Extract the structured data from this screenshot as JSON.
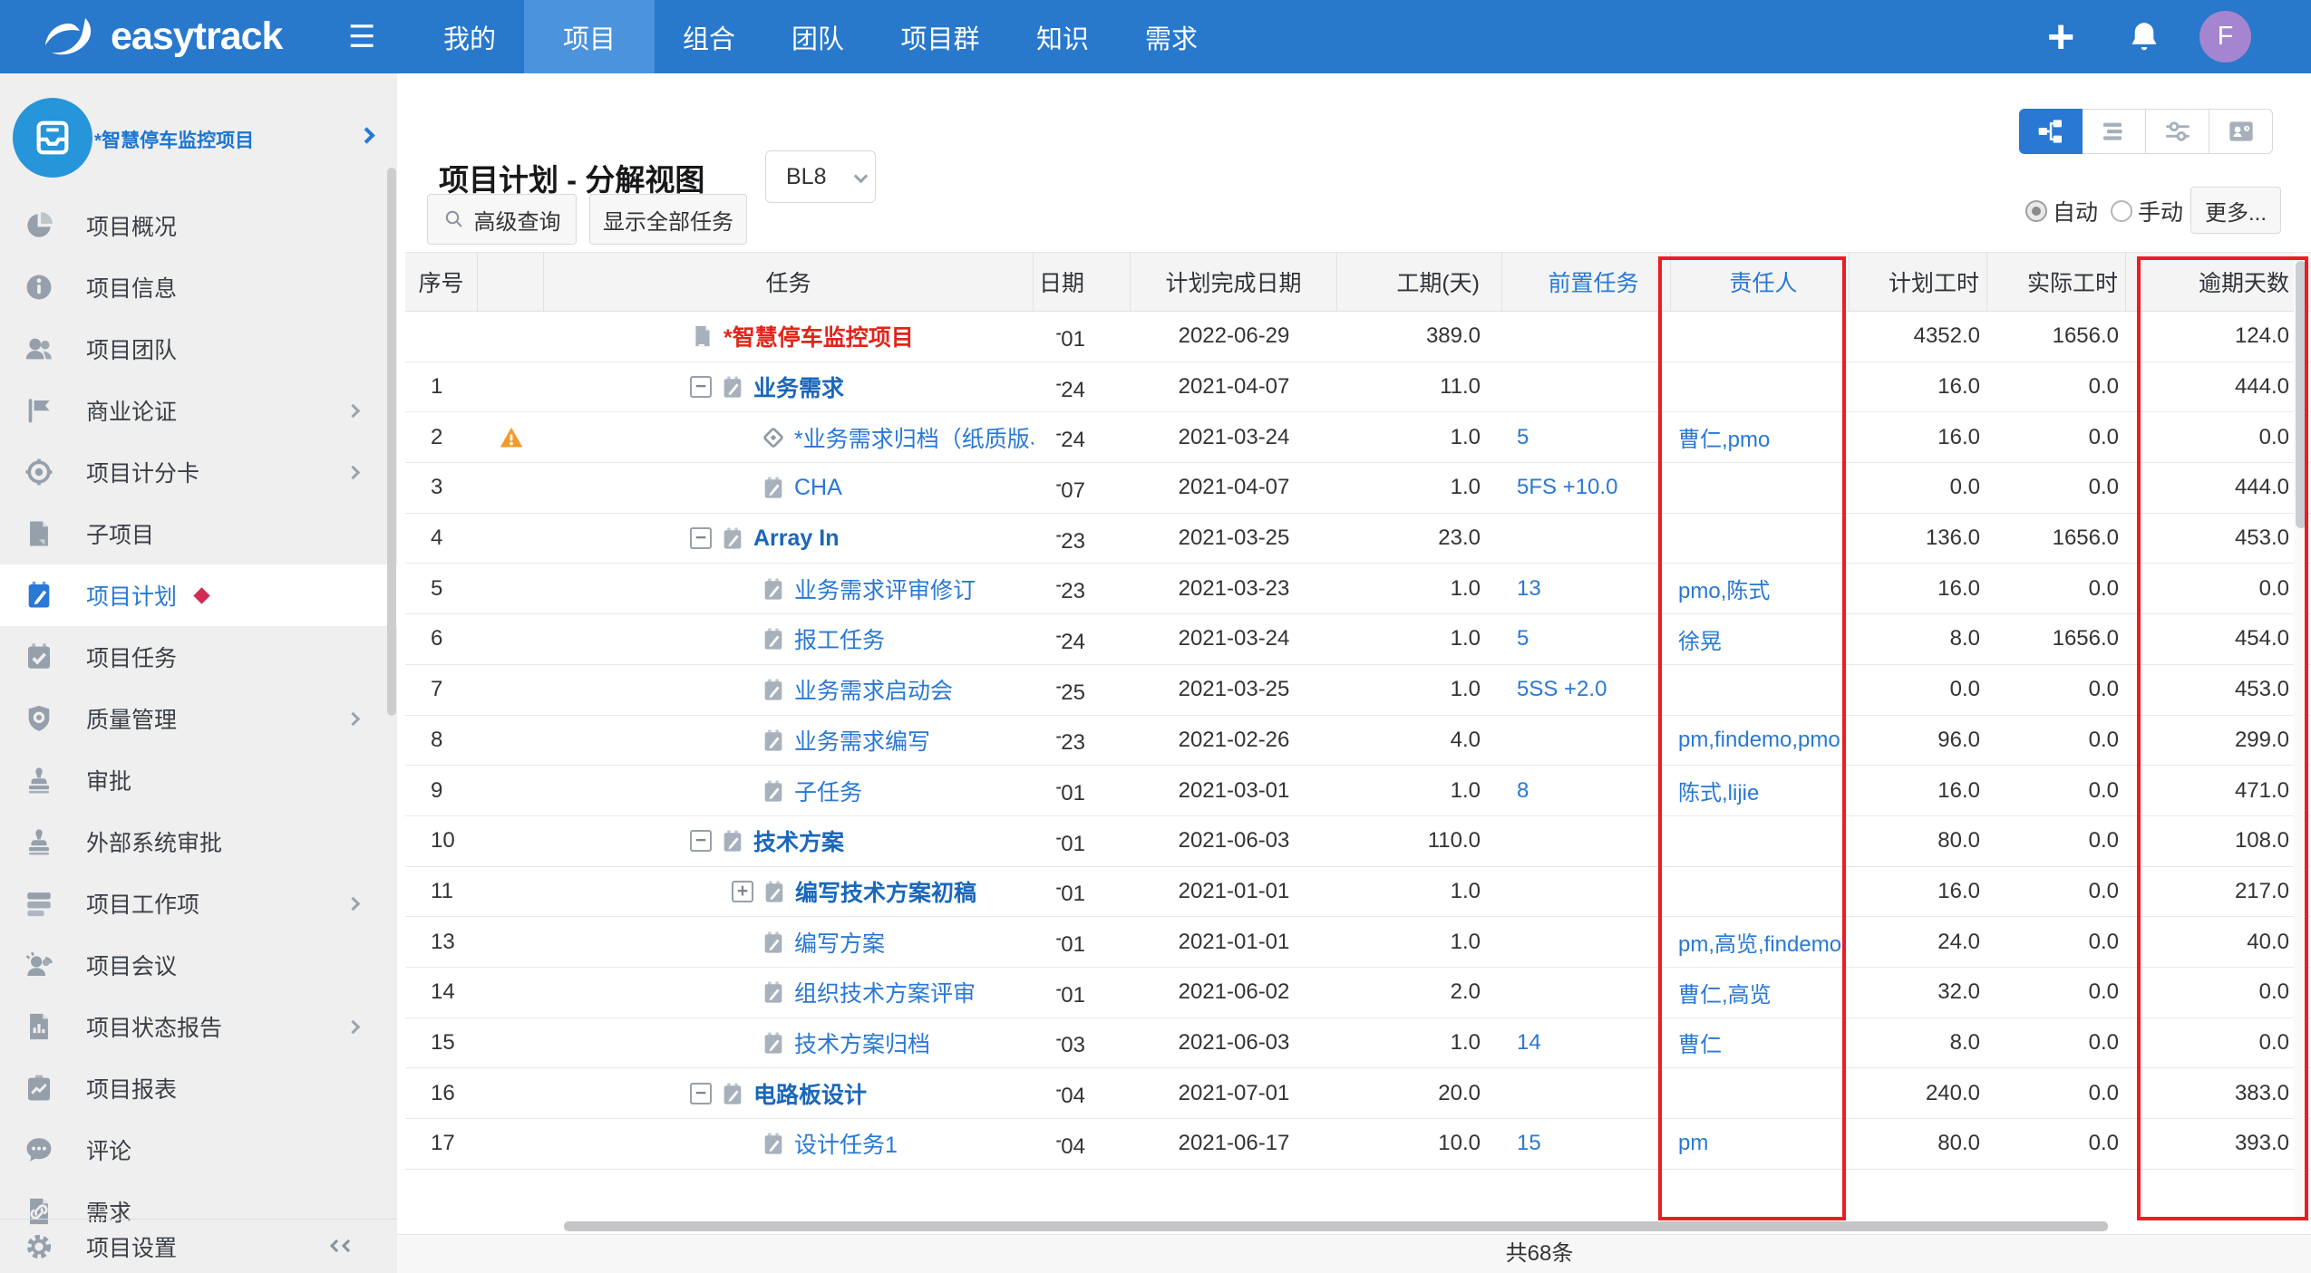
{
  "nav": {
    "logo": "easytrack",
    "items": [
      {
        "label": "我的",
        "active": false
      },
      {
        "label": "项目",
        "active": true
      },
      {
        "label": "组合",
        "active": false
      },
      {
        "label": "团队",
        "active": false
      },
      {
        "label": "项目群",
        "active": false
      },
      {
        "label": "知识",
        "active": false
      },
      {
        "label": "需求",
        "active": false
      }
    ],
    "plus": "+",
    "avatar": "F"
  },
  "sidebar": {
    "project_name": "*智慧停车监控项目",
    "items": [
      {
        "icon": "pie-icon",
        "label": "项目概况",
        "chevron": false,
        "selected": false
      },
      {
        "icon": "info-icon",
        "label": "项目信息",
        "chevron": false,
        "selected": false
      },
      {
        "icon": "team-icon",
        "label": "项目团队",
        "chevron": false,
        "selected": false
      },
      {
        "icon": "flag-icon",
        "label": "商业论证",
        "chevron": true,
        "selected": false
      },
      {
        "icon": "target-icon",
        "label": "项目计分卡",
        "chevron": true,
        "selected": false
      },
      {
        "icon": "subproject-icon",
        "label": "子项目",
        "chevron": false,
        "selected": false
      },
      {
        "icon": "plan-icon",
        "label": "项目计划",
        "chevron": false,
        "selected": true,
        "badge": true
      },
      {
        "icon": "task-icon",
        "label": "项目任务",
        "chevron": false,
        "selected": false
      },
      {
        "icon": "shield-icon",
        "label": "质量管理",
        "chevron": true,
        "selected": false
      },
      {
        "icon": "stamp-icon",
        "label": "审批",
        "chevron": false,
        "selected": false
      },
      {
        "icon": "stamp-icon",
        "label": "外部系统审批",
        "chevron": false,
        "selected": false
      },
      {
        "icon": "workitems-icon",
        "label": "项目工作项",
        "chevron": true,
        "selected": false
      },
      {
        "icon": "meeting-icon",
        "label": "项目会议",
        "chevron": false,
        "selected": false
      },
      {
        "icon": "status-report-icon",
        "label": "项目状态报告",
        "chevron": true,
        "selected": false
      },
      {
        "icon": "report-icon",
        "label": "项目报表",
        "chevron": false,
        "selected": false
      },
      {
        "icon": "comment-icon",
        "label": "评论",
        "chevron": false,
        "selected": false
      },
      {
        "icon": "requirement-icon",
        "label": "需求",
        "chevron": false,
        "selected": false
      }
    ],
    "footer": {
      "icon": "gear-icon",
      "label": "项目设置"
    }
  },
  "header": {
    "title": "项目计划 - 分解视图",
    "baseline": "BL8"
  },
  "toolbar": {
    "query_label": "高级查询",
    "show_all_label": "显示全部任务",
    "more_label": "更多...",
    "views": [
      "wbs-view-icon",
      "list-view-icon",
      "filter-view-icon",
      "card-view-icon"
    ],
    "active_view": 0,
    "radios": [
      {
        "label": "自动",
        "checked": true
      },
      {
        "label": "手动",
        "checked": false
      }
    ]
  },
  "table": {
    "headers": [
      "序号",
      "",
      "任务",
      "日期",
      "计划完成日期",
      "工期(天)",
      "前置任务",
      "责任人",
      "计划工时",
      "实际工时",
      "逾期天数"
    ],
    "rows": [
      {
        "seq": "",
        "warn": false,
        "level": 0,
        "exp": "",
        "icon": "project",
        "name": "*智慧停车监控项目",
        "style": "project",
        "start": "01",
        "finish": "2022-06-29",
        "dur": "389.0",
        "pred": "",
        "owner": "",
        "plan": "4352.0",
        "act": "1656.0",
        "over": "124.0"
      },
      {
        "seq": "1",
        "warn": false,
        "level": 1,
        "exp": "minus",
        "icon": "task",
        "name": "业务需求",
        "style": "parent",
        "start": "24",
        "finish": "2021-04-07",
        "dur": "11.0",
        "pred": "",
        "owner": "",
        "plan": "16.0",
        "act": "0.0",
        "over": "444.0"
      },
      {
        "seq": "2",
        "warn": true,
        "level": 2,
        "exp": "",
        "icon": "milestone",
        "name": "*业务需求归档（纸质版、电子版、评审会议",
        "style": "link",
        "start": "24",
        "finish": "2021-03-24",
        "dur": "1.0",
        "pred": "5",
        "owner": "曹仁,pmo",
        "plan": "16.0",
        "act": "0.0",
        "over": "0.0"
      },
      {
        "seq": "3",
        "warn": false,
        "level": 2,
        "exp": "",
        "icon": "task",
        "name": "CHA",
        "style": "link",
        "start": "07",
        "finish": "2021-04-07",
        "dur": "1.0",
        "pred": "5FS +10.0",
        "owner": "",
        "plan": "0.0",
        "act": "0.0",
        "over": "444.0"
      },
      {
        "seq": "4",
        "warn": false,
        "level": 1,
        "exp": "minus",
        "icon": "task",
        "name": "Array In",
        "style": "parent",
        "start": "23",
        "finish": "2021-03-25",
        "dur": "23.0",
        "pred": "",
        "owner": "",
        "plan": "136.0",
        "act": "1656.0",
        "over": "453.0"
      },
      {
        "seq": "5",
        "warn": false,
        "level": 2,
        "exp": "",
        "icon": "task",
        "name": "业务需求评审修订",
        "style": "link",
        "start": "23",
        "finish": "2021-03-23",
        "dur": "1.0",
        "pred": "13",
        "owner": "pmo,陈式",
        "plan": "16.0",
        "act": "0.0",
        "over": "0.0"
      },
      {
        "seq": "6",
        "warn": false,
        "level": 2,
        "exp": "",
        "icon": "task",
        "name": "报工任务",
        "style": "link",
        "start": "24",
        "finish": "2021-03-24",
        "dur": "1.0",
        "pred": "5",
        "owner": "徐晃",
        "plan": "8.0",
        "act": "1656.0",
        "over": "454.0"
      },
      {
        "seq": "7",
        "warn": false,
        "level": 2,
        "exp": "",
        "icon": "task",
        "name": "业务需求启动会",
        "style": "link",
        "start": "25",
        "finish": "2021-03-25",
        "dur": "1.0",
        "pred": "5SS +2.0",
        "owner": "",
        "plan": "0.0",
        "act": "0.0",
        "over": "453.0"
      },
      {
        "seq": "8",
        "warn": false,
        "level": 2,
        "exp": "",
        "icon": "task",
        "name": "业务需求编写",
        "style": "link",
        "start": "23",
        "finish": "2021-02-26",
        "dur": "4.0",
        "pred": "",
        "owner": "pm,findemo,pmo",
        "plan": "96.0",
        "act": "0.0",
        "over": "299.0"
      },
      {
        "seq": "9",
        "warn": false,
        "level": 2,
        "exp": "",
        "icon": "task",
        "name": "子任务",
        "style": "link",
        "start": "01",
        "finish": "2021-03-01",
        "dur": "1.0",
        "pred": "8",
        "owner": "陈式,lijie",
        "plan": "16.0",
        "act": "0.0",
        "over": "471.0"
      },
      {
        "seq": "10",
        "warn": false,
        "level": 1,
        "exp": "minus",
        "icon": "task",
        "name": "技术方案",
        "style": "parent",
        "start": "01",
        "finish": "2021-06-03",
        "dur": "110.0",
        "pred": "",
        "owner": "",
        "plan": "80.0",
        "act": "0.0",
        "over": "108.0"
      },
      {
        "seq": "11",
        "warn": false,
        "level": 2,
        "exp": "plus",
        "icon": "task",
        "name": "编写技术方案初稿",
        "style": "parent",
        "start": "01",
        "finish": "2021-01-01",
        "dur": "1.0",
        "pred": "",
        "owner": "",
        "plan": "16.0",
        "act": "0.0",
        "over": "217.0"
      },
      {
        "seq": "13",
        "warn": false,
        "level": 2,
        "exp": "",
        "icon": "task",
        "name": "编写方案",
        "style": "link",
        "start": "01",
        "finish": "2021-01-01",
        "dur": "1.0",
        "pred": "",
        "owner": "pm,高览,findemo",
        "plan": "24.0",
        "act": "0.0",
        "over": "40.0"
      },
      {
        "seq": "14",
        "warn": false,
        "level": 2,
        "exp": "",
        "icon": "task",
        "name": "组织技术方案评审",
        "style": "link",
        "start": "01",
        "finish": "2021-06-02",
        "dur": "2.0",
        "pred": "",
        "owner": "曹仁,高览",
        "plan": "32.0",
        "act": "0.0",
        "over": "0.0"
      },
      {
        "seq": "15",
        "warn": false,
        "level": 2,
        "exp": "",
        "icon": "task",
        "name": "技术方案归档",
        "style": "link",
        "start": "03",
        "finish": "2021-06-03",
        "dur": "1.0",
        "pred": "14",
        "owner": "曹仁",
        "plan": "8.0",
        "act": "0.0",
        "over": "0.0"
      },
      {
        "seq": "16",
        "warn": false,
        "level": 1,
        "exp": "minus",
        "icon": "task",
        "name": "电路板设计",
        "style": "parent",
        "start": "04",
        "finish": "2021-07-01",
        "dur": "20.0",
        "pred": "",
        "owner": "",
        "plan": "240.0",
        "act": "0.0",
        "over": "383.0"
      },
      {
        "seq": "17",
        "warn": false,
        "level": 2,
        "exp": "",
        "icon": "task",
        "name": "设计任务1",
        "style": "link",
        "start": "04",
        "finish": "2021-06-17",
        "dur": "10.0",
        "pred": "15",
        "owner": "pm",
        "plan": "80.0",
        "act": "0.0",
        "over": "393.0"
      }
    ]
  },
  "footer": {
    "total": "共68条"
  },
  "colors": {
    "nav_blue": "#2878cc",
    "active_tab_blue": "#4b94dd",
    "accent_blue": "#2878d4",
    "link_blue": "#2878d4",
    "project_red": "#e1251b",
    "annotation_red": "#ed1c24",
    "warning_orange": "#f39a2b",
    "avatar_purple": "#a585cf"
  }
}
